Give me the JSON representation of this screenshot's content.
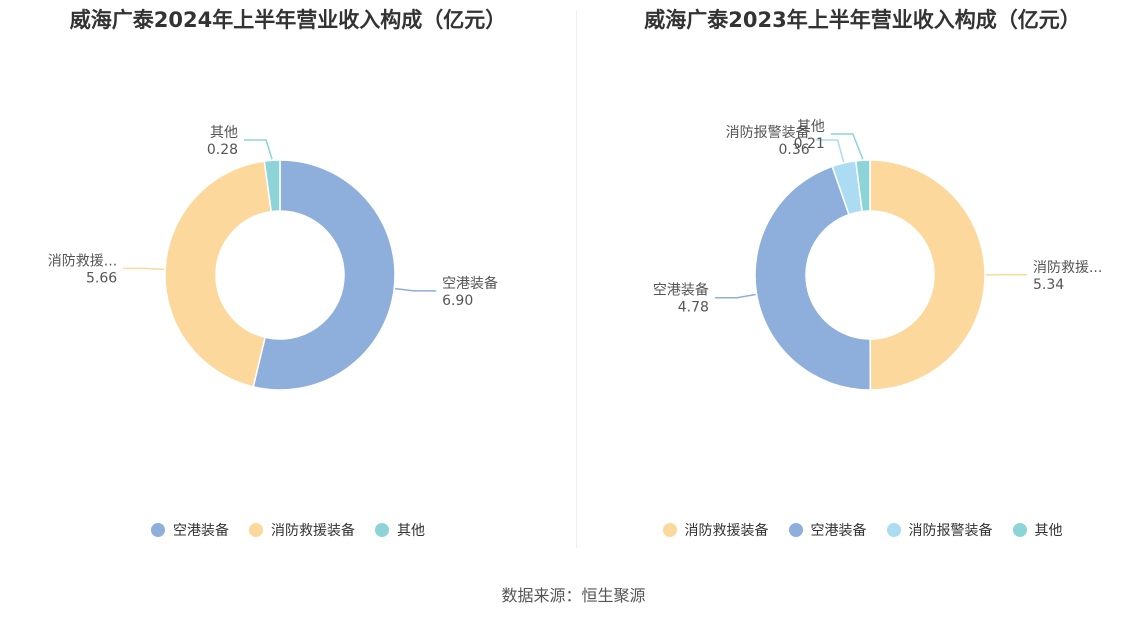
{
  "chart_data": [
    {
      "type": "pie",
      "title": "威海广泰2024年上半年营业收入构成（亿元）",
      "series": [
        {
          "name": "空港装备",
          "label": "空港装备",
          "value": 6.9,
          "value_text": "6.90",
          "color": "#8eaedb"
        },
        {
          "name": "消防救援装备",
          "label": "消防救援...",
          "value": 5.66,
          "value_text": "5.66",
          "color": "#fcd89c"
        },
        {
          "name": "其他",
          "label": "其他",
          "value": 0.28,
          "value_text": "0.28",
          "color": "#8dd4d8"
        }
      ]
    },
    {
      "type": "pie",
      "title": "威海广泰2023年上半年营业收入构成（亿元）",
      "series": [
        {
          "name": "消防救援装备",
          "label": "消防救援...",
          "value": 5.34,
          "value_text": "5.34",
          "color": "#fcd89c"
        },
        {
          "name": "空港装备",
          "label": "空港装备",
          "value": 4.78,
          "value_text": "4.78",
          "color": "#8eaedb"
        },
        {
          "name": "消防报警装备",
          "label": "消防报警装备",
          "value": 0.36,
          "value_text": "0.36",
          "color": "#abdcf4"
        },
        {
          "name": "其他",
          "label": "其他",
          "value": 0.21,
          "value_text": "0.21",
          "color": "#8dd4d8"
        }
      ]
    }
  ],
  "source": "数据来源：恒生聚源"
}
